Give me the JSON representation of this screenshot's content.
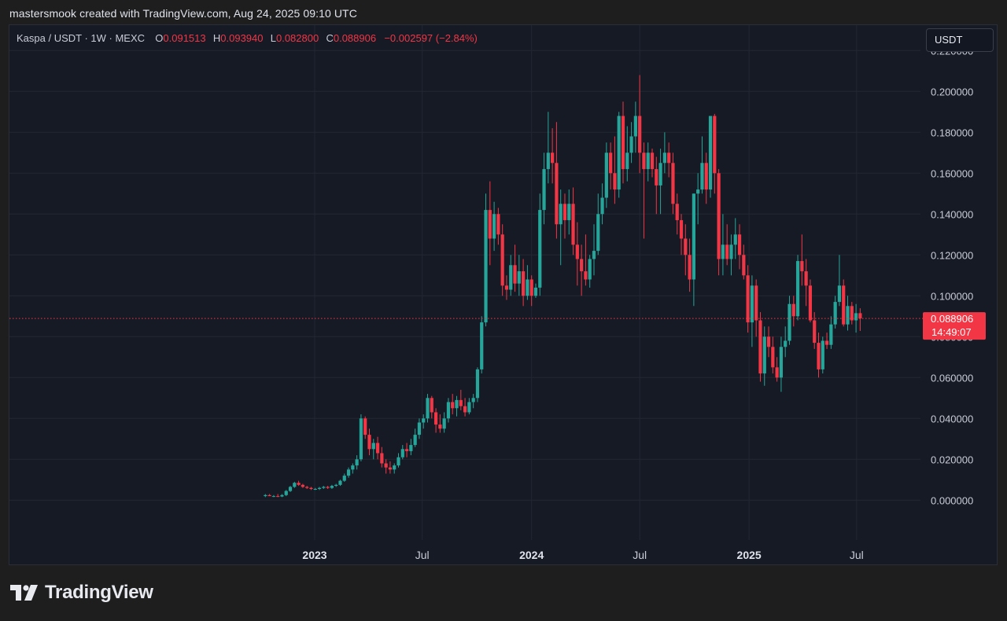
{
  "header": {
    "caption": "mastersmook created with TradingView.com, Aug 24, 2025 09:10 UTC"
  },
  "legend": {
    "symbol": "Kaspa / USDT · 1W · MEXC",
    "open_label": "O",
    "open": "0.091513",
    "high_label": "H",
    "high": "0.093940",
    "low_label": "L",
    "low": "0.082800",
    "close_label": "C",
    "close": "0.088906",
    "change": "−0.002597 (−2.84%)"
  },
  "currency_button": "USDT",
  "price_tag": {
    "price": "0.088906",
    "countdown": "14:49:07"
  },
  "brand": {
    "name": "TradingView"
  },
  "colors": {
    "up": "#26a69a",
    "down": "#f23645",
    "background": "#161a25",
    "grid": "#232733"
  },
  "chart_data": {
    "type": "candlestick",
    "title": "Kaspa / USDT · 1W · MEXC",
    "y_ticks": [
      {
        "value": 0.0,
        "label": "0.000000"
      },
      {
        "value": 0.02,
        "label": "0.020000"
      },
      {
        "value": 0.04,
        "label": "0.040000"
      },
      {
        "value": 0.06,
        "label": "0.060000"
      },
      {
        "value": 0.08,
        "label": "0.080000"
      },
      {
        "value": 0.1,
        "label": "0.100000"
      },
      {
        "value": 0.12,
        "label": "0.120000"
      },
      {
        "value": 0.14,
        "label": "0.140000"
      },
      {
        "value": 0.16,
        "label": "0.160000"
      },
      {
        "value": 0.18,
        "label": "0.180000"
      },
      {
        "value": 0.2,
        "label": "0.200000"
      },
      {
        "value": 0.22,
        "label": "0.220000"
      }
    ],
    "x_ticks": [
      {
        "date": "2023-01-01",
        "label": "2023",
        "bold": true
      },
      {
        "date": "2023-07-01",
        "label": "Jul",
        "bold": false
      },
      {
        "date": "2024-01-01",
        "label": "2024",
        "bold": true
      },
      {
        "date": "2024-07-01",
        "label": "Jul",
        "bold": false
      },
      {
        "date": "2025-01-01",
        "label": "2025",
        "bold": true
      },
      {
        "date": "2025-07-01",
        "label": "Jul",
        "bold": false
      }
    ],
    "last_price": 0.088906,
    "candles": [
      {
        "t": "2022-10-10",
        "o": 0.002,
        "h": 0.003,
        "l": 0.0015,
        "c": 0.0025
      },
      {
        "t": "2022-10-17",
        "o": 0.0025,
        "h": 0.003,
        "l": 0.002,
        "c": 0.002
      },
      {
        "t": "2022-10-24",
        "o": 0.002,
        "h": 0.0025,
        "l": 0.0015,
        "c": 0.002
      },
      {
        "t": "2022-10-31",
        "o": 0.002,
        "h": 0.003,
        "l": 0.0015,
        "c": 0.0018
      },
      {
        "t": "2022-11-07",
        "o": 0.0018,
        "h": 0.003,
        "l": 0.0015,
        "c": 0.0025
      },
      {
        "t": "2022-11-14",
        "o": 0.0025,
        "h": 0.005,
        "l": 0.002,
        "c": 0.0045
      },
      {
        "t": "2022-11-21",
        "o": 0.0045,
        "h": 0.007,
        "l": 0.004,
        "c": 0.0065
      },
      {
        "t": "2022-11-28",
        "o": 0.0065,
        "h": 0.009,
        "l": 0.006,
        "c": 0.0085
      },
      {
        "t": "2022-12-05",
        "o": 0.0085,
        "h": 0.0095,
        "l": 0.007,
        "c": 0.0075
      },
      {
        "t": "2022-12-12",
        "o": 0.0075,
        "h": 0.008,
        "l": 0.006,
        "c": 0.0065
      },
      {
        "t": "2022-12-19",
        "o": 0.0065,
        "h": 0.007,
        "l": 0.0055,
        "c": 0.006
      },
      {
        "t": "2022-12-26",
        "o": 0.006,
        "h": 0.0065,
        "l": 0.005,
        "c": 0.0055
      },
      {
        "t": "2023-01-02",
        "o": 0.0055,
        "h": 0.006,
        "l": 0.005,
        "c": 0.0055
      },
      {
        "t": "2023-01-09",
        "o": 0.0055,
        "h": 0.0065,
        "l": 0.005,
        "c": 0.006
      },
      {
        "t": "2023-01-16",
        "o": 0.006,
        "h": 0.007,
        "l": 0.0055,
        "c": 0.0065
      },
      {
        "t": "2023-01-23",
        "o": 0.0065,
        "h": 0.007,
        "l": 0.0055,
        "c": 0.006
      },
      {
        "t": "2023-01-30",
        "o": 0.006,
        "h": 0.0075,
        "l": 0.0055,
        "c": 0.007
      },
      {
        "t": "2023-02-06",
        "o": 0.007,
        "h": 0.008,
        "l": 0.0065,
        "c": 0.0075
      },
      {
        "t": "2023-02-13",
        "o": 0.0075,
        "h": 0.01,
        "l": 0.007,
        "c": 0.0095
      },
      {
        "t": "2023-02-20",
        "o": 0.0095,
        "h": 0.013,
        "l": 0.009,
        "c": 0.012
      },
      {
        "t": "2023-02-27",
        "o": 0.012,
        "h": 0.016,
        "l": 0.011,
        "c": 0.015
      },
      {
        "t": "2023-03-06",
        "o": 0.015,
        "h": 0.018,
        "l": 0.013,
        "c": 0.017
      },
      {
        "t": "2023-03-13",
        "o": 0.017,
        "h": 0.022,
        "l": 0.015,
        "c": 0.02
      },
      {
        "t": "2023-03-20",
        "o": 0.02,
        "h": 0.042,
        "l": 0.019,
        "c": 0.04
      },
      {
        "t": "2023-03-27",
        "o": 0.04,
        "h": 0.041,
        "l": 0.03,
        "c": 0.032
      },
      {
        "t": "2023-04-03",
        "o": 0.032,
        "h": 0.035,
        "l": 0.022,
        "c": 0.025
      },
      {
        "t": "2023-04-10",
        "o": 0.025,
        "h": 0.03,
        "l": 0.02,
        "c": 0.028
      },
      {
        "t": "2023-04-17",
        "o": 0.028,
        "h": 0.031,
        "l": 0.02,
        "c": 0.023
      },
      {
        "t": "2023-04-24",
        "o": 0.023,
        "h": 0.026,
        "l": 0.016,
        "c": 0.018
      },
      {
        "t": "2023-05-01",
        "o": 0.018,
        "h": 0.02,
        "l": 0.013,
        "c": 0.016
      },
      {
        "t": "2023-05-08",
        "o": 0.016,
        "h": 0.019,
        "l": 0.013,
        "c": 0.015
      },
      {
        "t": "2023-05-15",
        "o": 0.015,
        "h": 0.018,
        "l": 0.013,
        "c": 0.017
      },
      {
        "t": "2023-05-22",
        "o": 0.017,
        "h": 0.023,
        "l": 0.016,
        "c": 0.021
      },
      {
        "t": "2023-05-29",
        "o": 0.021,
        "h": 0.027,
        "l": 0.02,
        "c": 0.025
      },
      {
        "t": "2023-06-05",
        "o": 0.025,
        "h": 0.028,
        "l": 0.021,
        "c": 0.024
      },
      {
        "t": "2023-06-12",
        "o": 0.024,
        "h": 0.03,
        "l": 0.022,
        "c": 0.027
      },
      {
        "t": "2023-06-19",
        "o": 0.027,
        "h": 0.035,
        "l": 0.026,
        "c": 0.032
      },
      {
        "t": "2023-06-26",
        "o": 0.032,
        "h": 0.04,
        "l": 0.03,
        "c": 0.038
      },
      {
        "t": "2023-07-03",
        "o": 0.038,
        "h": 0.042,
        "l": 0.035,
        "c": 0.04
      },
      {
        "t": "2023-07-10",
        "o": 0.04,
        "h": 0.052,
        "l": 0.038,
        "c": 0.05
      },
      {
        "t": "2023-07-17",
        "o": 0.05,
        "h": 0.051,
        "l": 0.04,
        "c": 0.043
      },
      {
        "t": "2023-07-24",
        "o": 0.043,
        "h": 0.045,
        "l": 0.033,
        "c": 0.037
      },
      {
        "t": "2023-07-31",
        "o": 0.037,
        "h": 0.042,
        "l": 0.033,
        "c": 0.035
      },
      {
        "t": "2023-08-07",
        "o": 0.035,
        "h": 0.043,
        "l": 0.033,
        "c": 0.04
      },
      {
        "t": "2023-08-14",
        "o": 0.04,
        "h": 0.05,
        "l": 0.038,
        "c": 0.048
      },
      {
        "t": "2023-08-21",
        "o": 0.048,
        "h": 0.052,
        "l": 0.042,
        "c": 0.045
      },
      {
        "t": "2023-08-28",
        "o": 0.045,
        "h": 0.051,
        "l": 0.041,
        "c": 0.049
      },
      {
        "t": "2023-09-04",
        "o": 0.049,
        "h": 0.054,
        "l": 0.044,
        "c": 0.046
      },
      {
        "t": "2023-09-11",
        "o": 0.046,
        "h": 0.05,
        "l": 0.041,
        "c": 0.043
      },
      {
        "t": "2023-09-18",
        "o": 0.043,
        "h": 0.05,
        "l": 0.042,
        "c": 0.048
      },
      {
        "t": "2023-09-25",
        "o": 0.048,
        "h": 0.052,
        "l": 0.045,
        "c": 0.05
      },
      {
        "t": "2023-10-02",
        "o": 0.05,
        "h": 0.065,
        "l": 0.048,
        "c": 0.064
      },
      {
        "t": "2023-10-09",
        "o": 0.064,
        "h": 0.09,
        "l": 0.062,
        "c": 0.087
      },
      {
        "t": "2023-10-16",
        "o": 0.087,
        "h": 0.15,
        "l": 0.085,
        "c": 0.142
      },
      {
        "t": "2023-10-23",
        "o": 0.142,
        "h": 0.156,
        "l": 0.115,
        "c": 0.128
      },
      {
        "t": "2023-10-30",
        "o": 0.128,
        "h": 0.146,
        "l": 0.122,
        "c": 0.14
      },
      {
        "t": "2023-11-06",
        "o": 0.14,
        "h": 0.143,
        "l": 0.125,
        "c": 0.13
      },
      {
        "t": "2023-11-13",
        "o": 0.13,
        "h": 0.135,
        "l": 0.1,
        "c": 0.105
      },
      {
        "t": "2023-11-20",
        "o": 0.105,
        "h": 0.11,
        "l": 0.098,
        "c": 0.103
      },
      {
        "t": "2023-11-27",
        "o": 0.103,
        "h": 0.12,
        "l": 0.1,
        "c": 0.115
      },
      {
        "t": "2023-12-04",
        "o": 0.115,
        "h": 0.125,
        "l": 0.102,
        "c": 0.106
      },
      {
        "t": "2023-12-11",
        "o": 0.106,
        "h": 0.12,
        "l": 0.1,
        "c": 0.112
      },
      {
        "t": "2023-12-18",
        "o": 0.112,
        "h": 0.118,
        "l": 0.095,
        "c": 0.1
      },
      {
        "t": "2023-12-25",
        "o": 0.1,
        "h": 0.115,
        "l": 0.098,
        "c": 0.108
      },
      {
        "t": "2024-01-01",
        "o": 0.108,
        "h": 0.11,
        "l": 0.095,
        "c": 0.1
      },
      {
        "t": "2024-01-08",
        "o": 0.1,
        "h": 0.106,
        "l": 0.099,
        "c": 0.104
      },
      {
        "t": "2024-01-15",
        "o": 0.104,
        "h": 0.15,
        "l": 0.1,
        "c": 0.142
      },
      {
        "t": "2024-01-22",
        "o": 0.142,
        "h": 0.17,
        "l": 0.135,
        "c": 0.162
      },
      {
        "t": "2024-01-29",
        "o": 0.162,
        "h": 0.19,
        "l": 0.155,
        "c": 0.17
      },
      {
        "t": "2024-02-05",
        "o": 0.17,
        "h": 0.182,
        "l": 0.155,
        "c": 0.165
      },
      {
        "t": "2024-02-12",
        "o": 0.165,
        "h": 0.185,
        "l": 0.128,
        "c": 0.135
      },
      {
        "t": "2024-02-19",
        "o": 0.135,
        "h": 0.152,
        "l": 0.115,
        "c": 0.145
      },
      {
        "t": "2024-02-26",
        "o": 0.145,
        "h": 0.15,
        "l": 0.128,
        "c": 0.137
      },
      {
        "t": "2024-03-04",
        "o": 0.137,
        "h": 0.152,
        "l": 0.13,
        "c": 0.145
      },
      {
        "t": "2024-03-11",
        "o": 0.145,
        "h": 0.153,
        "l": 0.12,
        "c": 0.125
      },
      {
        "t": "2024-03-18",
        "o": 0.125,
        "h": 0.136,
        "l": 0.105,
        "c": 0.118
      },
      {
        "t": "2024-03-25",
        "o": 0.118,
        "h": 0.125,
        "l": 0.1,
        "c": 0.112
      },
      {
        "t": "2024-04-01",
        "o": 0.112,
        "h": 0.13,
        "l": 0.105,
        "c": 0.108
      },
      {
        "t": "2024-04-08",
        "o": 0.108,
        "h": 0.12,
        "l": 0.104,
        "c": 0.118
      },
      {
        "t": "2024-04-15",
        "o": 0.118,
        "h": 0.135,
        "l": 0.11,
        "c": 0.122
      },
      {
        "t": "2024-04-22",
        "o": 0.122,
        "h": 0.15,
        "l": 0.12,
        "c": 0.14
      },
      {
        "t": "2024-04-29",
        "o": 0.14,
        "h": 0.155,
        "l": 0.135,
        "c": 0.148
      },
      {
        "t": "2024-05-06",
        "o": 0.148,
        "h": 0.175,
        "l": 0.143,
        "c": 0.17
      },
      {
        "t": "2024-05-13",
        "o": 0.17,
        "h": 0.175,
        "l": 0.152,
        "c": 0.16
      },
      {
        "t": "2024-05-20",
        "o": 0.16,
        "h": 0.178,
        "l": 0.145,
        "c": 0.152
      },
      {
        "t": "2024-05-27",
        "o": 0.152,
        "h": 0.19,
        "l": 0.148,
        "c": 0.188
      },
      {
        "t": "2024-06-03",
        "o": 0.188,
        "h": 0.195,
        "l": 0.155,
        "c": 0.162
      },
      {
        "t": "2024-06-10",
        "o": 0.162,
        "h": 0.183,
        "l": 0.156,
        "c": 0.17
      },
      {
        "t": "2024-06-17",
        "o": 0.17,
        "h": 0.185,
        "l": 0.165,
        "c": 0.178
      },
      {
        "t": "2024-06-24",
        "o": 0.178,
        "h": 0.195,
        "l": 0.17,
        "c": 0.188
      },
      {
        "t": "2024-07-01",
        "o": 0.188,
        "h": 0.208,
        "l": 0.16,
        "c": 0.17
      },
      {
        "t": "2024-07-08",
        "o": 0.17,
        "h": 0.175,
        "l": 0.128,
        "c": 0.162
      },
      {
        "t": "2024-07-15",
        "o": 0.162,
        "h": 0.175,
        "l": 0.156,
        "c": 0.17
      },
      {
        "t": "2024-07-22",
        "o": 0.17,
        "h": 0.172,
        "l": 0.158,
        "c": 0.162
      },
      {
        "t": "2024-07-29",
        "o": 0.162,
        "h": 0.168,
        "l": 0.14,
        "c": 0.154
      },
      {
        "t": "2024-08-05",
        "o": 0.154,
        "h": 0.172,
        "l": 0.14,
        "c": 0.165
      },
      {
        "t": "2024-08-12",
        "o": 0.165,
        "h": 0.18,
        "l": 0.16,
        "c": 0.17
      },
      {
        "t": "2024-08-19",
        "o": 0.17,
        "h": 0.175,
        "l": 0.158,
        "c": 0.165
      },
      {
        "t": "2024-08-26",
        "o": 0.165,
        "h": 0.17,
        "l": 0.14,
        "c": 0.145
      },
      {
        "t": "2024-09-02",
        "o": 0.145,
        "h": 0.15,
        "l": 0.13,
        "c": 0.137
      },
      {
        "t": "2024-09-09",
        "o": 0.137,
        "h": 0.14,
        "l": 0.12,
        "c": 0.128
      },
      {
        "t": "2024-09-16",
        "o": 0.128,
        "h": 0.135,
        "l": 0.11,
        "c": 0.12
      },
      {
        "t": "2024-09-23",
        "o": 0.12,
        "h": 0.128,
        "l": 0.102,
        "c": 0.108
      },
      {
        "t": "2024-09-30",
        "o": 0.108,
        "h": 0.15,
        "l": 0.095,
        "c": 0.15
      },
      {
        "t": "2024-10-07",
        "o": 0.15,
        "h": 0.16,
        "l": 0.135,
        "c": 0.152
      },
      {
        "t": "2024-10-14",
        "o": 0.152,
        "h": 0.178,
        "l": 0.15,
        "c": 0.165
      },
      {
        "t": "2024-10-21",
        "o": 0.165,
        "h": 0.17,
        "l": 0.145,
        "c": 0.152
      },
      {
        "t": "2024-10-28",
        "o": 0.152,
        "h": 0.188,
        "l": 0.148,
        "c": 0.188
      },
      {
        "t": "2024-11-04",
        "o": 0.188,
        "h": 0.189,
        "l": 0.15,
        "c": 0.16
      },
      {
        "t": "2024-11-11",
        "o": 0.16,
        "h": 0.162,
        "l": 0.11,
        "c": 0.118
      },
      {
        "t": "2024-11-18",
        "o": 0.118,
        "h": 0.14,
        "l": 0.11,
        "c": 0.125
      },
      {
        "t": "2024-11-25",
        "o": 0.125,
        "h": 0.135,
        "l": 0.115,
        "c": 0.118
      },
      {
        "t": "2024-12-02",
        "o": 0.118,
        "h": 0.13,
        "l": 0.11,
        "c": 0.125
      },
      {
        "t": "2024-12-09",
        "o": 0.125,
        "h": 0.138,
        "l": 0.118,
        "c": 0.13
      },
      {
        "t": "2024-12-16",
        "o": 0.13,
        "h": 0.135,
        "l": 0.113,
        "c": 0.12
      },
      {
        "t": "2024-12-23",
        "o": 0.12,
        "h": 0.125,
        "l": 0.108,
        "c": 0.11
      },
      {
        "t": "2024-12-30",
        "o": 0.11,
        "h": 0.115,
        "l": 0.082,
        "c": 0.087
      },
      {
        "t": "2025-01-06",
        "o": 0.087,
        "h": 0.11,
        "l": 0.075,
        "c": 0.105
      },
      {
        "t": "2025-01-13",
        "o": 0.105,
        "h": 0.108,
        "l": 0.08,
        "c": 0.088
      },
      {
        "t": "2025-01-20",
        "o": 0.088,
        "h": 0.092,
        "l": 0.058,
        "c": 0.062
      },
      {
        "t": "2025-01-27",
        "o": 0.062,
        "h": 0.085,
        "l": 0.056,
        "c": 0.08
      },
      {
        "t": "2025-02-03",
        "o": 0.08,
        "h": 0.085,
        "l": 0.07,
        "c": 0.075
      },
      {
        "t": "2025-02-10",
        "o": 0.075,
        "h": 0.08,
        "l": 0.062,
        "c": 0.065
      },
      {
        "t": "2025-02-17",
        "o": 0.065,
        "h": 0.07,
        "l": 0.058,
        "c": 0.06
      },
      {
        "t": "2025-02-24",
        "o": 0.06,
        "h": 0.08,
        "l": 0.053,
        "c": 0.075
      },
      {
        "t": "2025-03-03",
        "o": 0.075,
        "h": 0.085,
        "l": 0.07,
        "c": 0.078
      },
      {
        "t": "2025-03-10",
        "o": 0.078,
        "h": 0.1,
        "l": 0.076,
        "c": 0.096
      },
      {
        "t": "2025-03-17",
        "o": 0.096,
        "h": 0.1,
        "l": 0.085,
        "c": 0.09
      },
      {
        "t": "2025-03-24",
        "o": 0.09,
        "h": 0.12,
        "l": 0.088,
        "c": 0.117
      },
      {
        "t": "2025-03-31",
        "o": 0.117,
        "h": 0.13,
        "l": 0.105,
        "c": 0.112
      },
      {
        "t": "2025-04-07",
        "o": 0.112,
        "h": 0.118,
        "l": 0.095,
        "c": 0.105
      },
      {
        "t": "2025-04-14",
        "o": 0.105,
        "h": 0.108,
        "l": 0.087,
        "c": 0.088
      },
      {
        "t": "2025-04-21",
        "o": 0.088,
        "h": 0.092,
        "l": 0.074,
        "c": 0.077
      },
      {
        "t": "2025-04-28",
        "o": 0.077,
        "h": 0.082,
        "l": 0.06,
        "c": 0.064
      },
      {
        "t": "2025-05-05",
        "o": 0.064,
        "h": 0.08,
        "l": 0.062,
        "c": 0.078
      },
      {
        "t": "2025-05-12",
        "o": 0.078,
        "h": 0.082,
        "l": 0.074,
        "c": 0.076
      },
      {
        "t": "2025-05-19",
        "o": 0.076,
        "h": 0.09,
        "l": 0.074,
        "c": 0.086
      },
      {
        "t": "2025-05-26",
        "o": 0.086,
        "h": 0.1,
        "l": 0.084,
        "c": 0.097
      },
      {
        "t": "2025-06-02",
        "o": 0.097,
        "h": 0.12,
        "l": 0.095,
        "c": 0.105
      },
      {
        "t": "2025-06-09",
        "o": 0.105,
        "h": 0.108,
        "l": 0.085,
        "c": 0.086
      },
      {
        "t": "2025-06-16",
        "o": 0.086,
        "h": 0.1,
        "l": 0.083,
        "c": 0.095
      },
      {
        "t": "2025-06-23",
        "o": 0.095,
        "h": 0.097,
        "l": 0.086,
        "c": 0.088
      },
      {
        "t": "2025-06-30",
        "o": 0.088,
        "h": 0.096,
        "l": 0.082,
        "c": 0.0915
      },
      {
        "t": "2025-07-07",
        "o": 0.0915,
        "h": 0.0939,
        "l": 0.0828,
        "c": 0.0889
      }
    ]
  }
}
